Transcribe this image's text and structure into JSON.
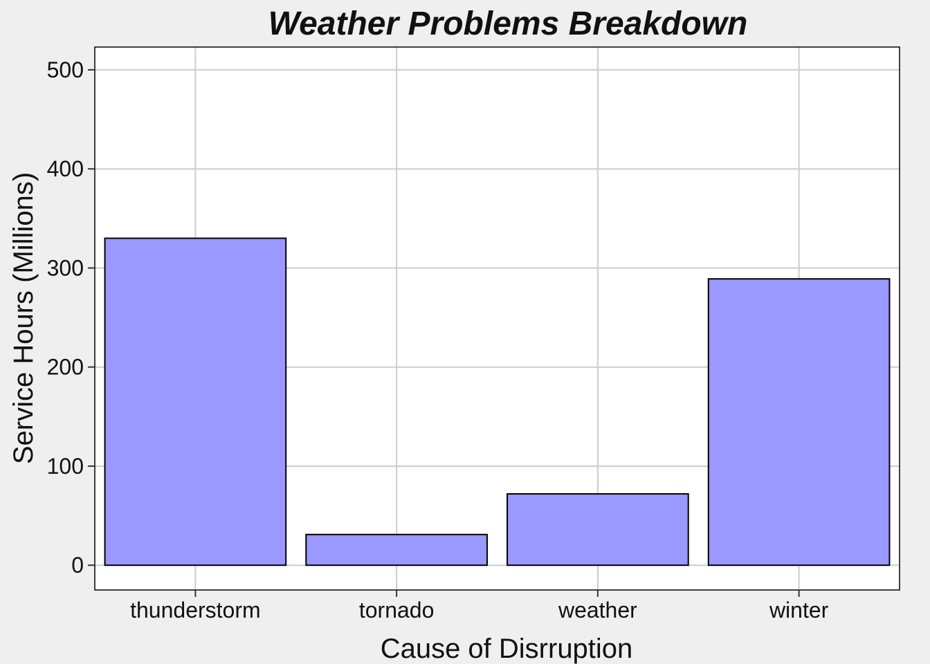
{
  "chart_data": {
    "type": "bar",
    "title": "Weather Problems Breakdown",
    "xlabel": "Cause of Disrruption",
    "ylabel": "Service Hours (Millions)",
    "categories": [
      "thunderstorm",
      "tornado",
      "weather",
      "winter"
    ],
    "values": [
      330,
      31,
      72,
      289
    ],
    "ylim": [
      -25,
      523
    ],
    "yticks": [
      0,
      100,
      200,
      300,
      400,
      500
    ],
    "grid": true,
    "legend": "none",
    "colors": {
      "bar_fill": "#9999ff",
      "bar_stroke": "#000000",
      "grid": "#cccccc",
      "panel": "#ffffff",
      "background": "#efefef"
    }
  }
}
